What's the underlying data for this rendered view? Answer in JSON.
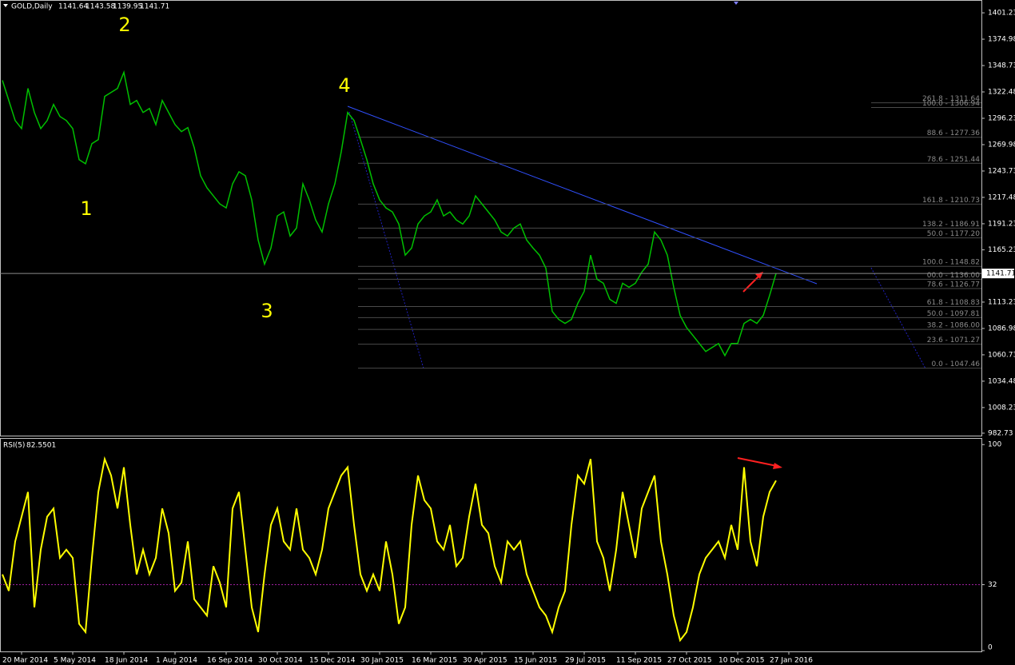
{
  "chart_data": [
    {
      "type": "line",
      "title": "GOLD,Daily",
      "ohlc": [
        1141.64,
        1143.58,
        1139.95,
        1141.71
      ],
      "color": "#00c000",
      "categories": [
        null,
        null,
        null,
        "20 Mar 2014",
        null,
        null,
        null,
        null,
        null,
        null,
        null,
        "5 May 2014",
        null,
        null,
        null,
        null,
        null,
        null,
        null,
        "18 Jun 2014",
        null,
        null,
        null,
        null,
        null,
        null,
        null,
        "1 Aug 2014",
        null,
        null,
        null,
        null,
        null,
        null,
        null,
        "16 Sep 2014",
        null,
        null,
        null,
        null,
        null,
        null,
        null,
        "30 Oct 2014",
        null,
        null,
        null,
        null,
        null,
        null,
        null,
        "15 Dec 2014",
        null,
        null,
        null,
        null,
        null,
        null,
        null,
        "30 Jan 2015",
        null,
        null,
        null,
        null,
        null,
        null,
        null,
        "16 Mar 2015",
        null,
        null,
        null,
        null,
        null,
        null,
        null,
        "30 Apr 2015",
        null,
        null,
        null,
        null,
        null,
        null,
        null,
        "15 Jun 2015",
        null,
        null,
        null,
        null,
        null,
        null,
        null,
        "29 Jul 2015",
        null,
        null,
        null,
        null,
        null,
        null,
        null,
        "11 Sep 2015",
        null,
        null,
        null,
        null,
        null,
        null,
        null,
        "27 Oct 2015",
        null,
        null,
        null,
        null,
        null,
        null,
        null,
        "10 Dec 2015",
        null,
        null,
        null,
        null,
        null,
        null,
        null,
        "27 Jan 2016"
      ],
      "values": [
        1334,
        1314,
        1294,
        1286,
        1326,
        1302,
        1286,
        1294,
        1310,
        1298,
        1294,
        1286,
        1255,
        1251,
        1271,
        1275,
        1318,
        1322,
        1326,
        1342,
        1310,
        1314,
        1302,
        1306,
        1290,
        1314,
        1302,
        1290,
        1283,
        1287,
        1267,
        1239,
        1227,
        1219,
        1211,
        1207,
        1231,
        1243,
        1239,
        1215,
        1175,
        1151,
        1167,
        1199,
        1203,
        1179,
        1187,
        1231,
        1215,
        1195,
        1183,
        1211,
        1231,
        1263,
        1302,
        1294,
        1275,
        1255,
        1231,
        1215,
        1207,
        1203,
        1191,
        1160,
        1167,
        1191,
        1199,
        1203,
        1215,
        1199,
        1203,
        1195,
        1191,
        1199,
        1219,
        1211,
        1203,
        1195,
        1183,
        1179,
        1187,
        1191,
        1175,
        1167,
        1160,
        1147,
        1104,
        1096,
        1092,
        1096,
        1112,
        1124,
        1160,
        1136,
        1132,
        1116,
        1112,
        1132,
        1128,
        1132,
        1143,
        1151,
        1183,
        1175,
        1160,
        1128,
        1100,
        1088,
        1080,
        1072,
        1064,
        1068,
        1072,
        1060,
        1072,
        1072,
        1092,
        1096,
        1092,
        1100,
        1120,
        1141.71,
        null,
        null
      ],
      "ylim": [
        980.3,
        1414
      ],
      "yticks": [
        1401.23,
        1374.98,
        1348.73,
        1322.48,
        1296.23,
        1269.98,
        1243.73,
        1217.48,
        1191.23,
        1165.23,
        1113.23,
        1086.98,
        1060.73,
        1034.48,
        1008.23,
        982.73
      ],
      "annotations": [
        "1",
        "2",
        "3",
        "4"
      ],
      "fib_levels": [
        {
          "value": 1311.64,
          "label": "261.8 - 1311.64"
        },
        {
          "value": 1306.94,
          "label": "100.0 - 1306.94"
        },
        {
          "value": 1277.36,
          "label": "88.6 - 1277.36"
        },
        {
          "value": 1251.44,
          "label": "78.6 - 1251.44"
        },
        {
          "value": 1210.73,
          "label": "161.8 - 1210.73"
        },
        {
          "value": 1186.91,
          "label": "138.2 - 1186.91"
        },
        {
          "value": 1177.2,
          "label": "50.0 - 1177.20"
        },
        {
          "value": 1148.82,
          "label": "100.0 - 1148.82"
        },
        {
          "value": 1136,
          "label": "00.0 - 1136.00"
        },
        {
          "value": 1126.77,
          "label": "78.6 - 1126.77"
        },
        {
          "value": 1108.83,
          "label": "61.8 - 1108.83"
        },
        {
          "value": 1097.81,
          "label": "50.0 - 1097.81"
        },
        {
          "value": 1086,
          "label": "38.2 - 1086.00"
        },
        {
          "value": 1071.27,
          "label": "23.6 - 1071.27"
        },
        {
          "value": 1047.46,
          "label": "0.0 - 1047.46"
        }
      ]
    },
    {
      "type": "line",
      "title": "RSI(5)",
      "color": "#ffff00",
      "values": [
        37,
        29,
        53,
        65,
        77,
        21,
        49,
        65,
        69,
        45,
        49,
        45,
        13,
        9,
        45,
        77,
        93,
        85,
        69,
        89,
        61,
        37,
        49,
        37,
        45,
        69,
        57,
        29,
        33,
        53,
        25,
        21,
        17,
        41,
        33,
        21,
        69,
        77,
        49,
        21,
        9,
        37,
        61,
        69,
        53,
        49,
        69,
        49,
        45,
        37,
        49,
        69,
        77,
        85,
        89,
        61,
        37,
        29,
        37,
        29,
        53,
        37,
        13,
        21,
        61,
        85,
        73,
        69,
        53,
        49,
        61,
        41,
        45,
        65,
        81,
        61,
        57,
        41,
        33,
        53,
        49,
        53,
        37,
        29,
        21,
        17,
        9,
        21,
        29,
        61,
        85,
        81,
        93,
        53,
        45,
        29,
        49,
        77,
        61,
        45,
        69,
        77,
        85,
        53,
        37,
        17,
        5,
        9,
        21,
        37,
        45,
        49,
        53,
        45,
        61,
        49,
        89,
        53,
        41,
        65,
        77,
        82.5501,
        null,
        null
      ],
      "ylim": [
        0,
        103.2
      ],
      "yticks": [
        0,
        32,
        100
      ],
      "level": 32
    }
  ]
}
